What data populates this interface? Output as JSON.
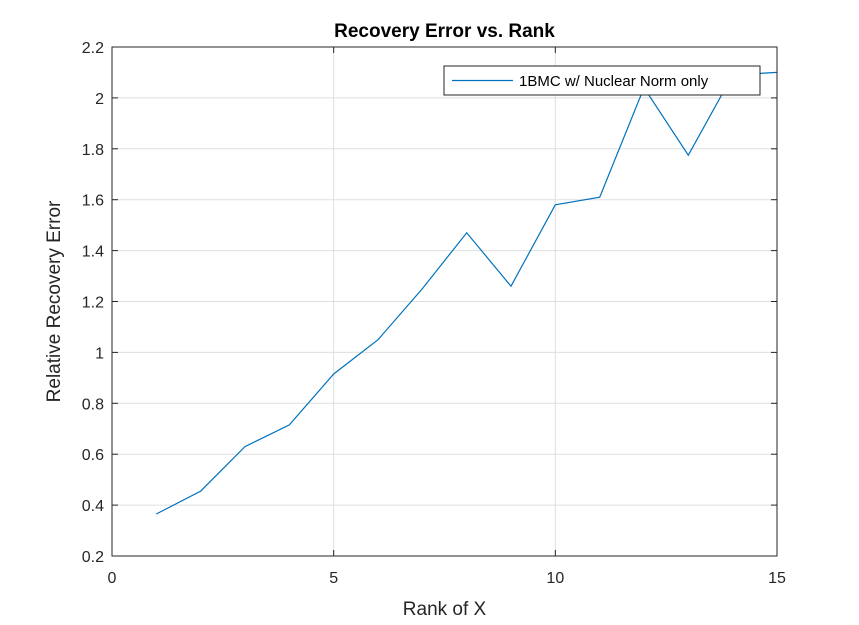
{
  "chart_data": {
    "type": "line",
    "title": "Recovery Error vs. Rank",
    "xlabel": "Rank of X",
    "ylabel": "Relative Recovery Error",
    "xlim": [
      0,
      15
    ],
    "ylim": [
      0.2,
      2.2
    ],
    "xticks": [
      0,
      5,
      10,
      15
    ],
    "yticks": [
      0.2,
      0.4,
      0.6,
      0.8,
      1,
      1.2,
      1.4,
      1.6,
      1.8,
      2,
      2.2
    ],
    "xtick_labels": [
      "0",
      "5",
      "10",
      "15"
    ],
    "ytick_labels": [
      "0.2",
      "0.4",
      "0.6",
      "0.8",
      "1",
      "1.2",
      "1.4",
      "1.6",
      "1.8",
      "2",
      "2.2"
    ],
    "grid": true,
    "legend_position": "top-right",
    "series": [
      {
        "name": "1BMC w/ Nuclear Norm only",
        "color": "#0072BD",
        "x": [
          1,
          2,
          3,
          4,
          5,
          6,
          7,
          8,
          9,
          10,
          11,
          12,
          13,
          14,
          15
        ],
        "y": [
          0.365,
          0.455,
          0.63,
          0.715,
          0.915,
          1.05,
          1.25,
          1.47,
          1.26,
          1.58,
          1.61,
          2.04,
          1.775,
          2.09,
          2.1
        ]
      }
    ]
  }
}
